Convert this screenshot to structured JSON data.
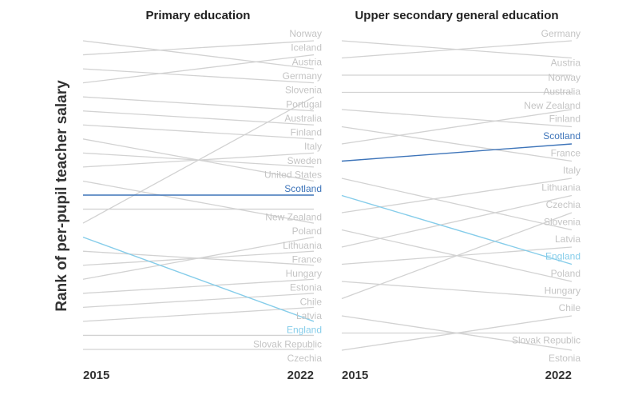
{
  "colors": {
    "other": "#d2d2d2",
    "other_label": "#c4c4c4",
    "Scotland": "#3d74b9",
    "England": "#86cdea"
  },
  "chart_data": [
    {
      "type": "slope",
      "title": "Primary education",
      "ylabel": "Rank of per-pupil teacher salary",
      "x": [
        "2015",
        "2022"
      ],
      "countries": [
        {
          "name": "Norway",
          "rank_2015": 2,
          "rank_2022": 1
        },
        {
          "name": "Iceland",
          "rank_2015": 4,
          "rank_2022": 2
        },
        {
          "name": "Austria",
          "rank_2015": 1,
          "rank_2022": 3
        },
        {
          "name": "Germany",
          "rank_2015": 3,
          "rank_2022": 4
        },
        {
          "name": "Slovenia",
          "rank_2015": 14,
          "rank_2022": 5
        },
        {
          "name": "Portugal",
          "rank_2015": 5,
          "rank_2022": 6
        },
        {
          "name": "Australia",
          "rank_2015": 6,
          "rank_2022": 7
        },
        {
          "name": "Finland",
          "rank_2015": 7,
          "rank_2022": 8
        },
        {
          "name": "Italy",
          "rank_2015": 10,
          "rank_2022": 9
        },
        {
          "name": "Sweden",
          "rank_2015": 9,
          "rank_2022": 10
        },
        {
          "name": "United States",
          "rank_2015": 8,
          "rank_2022": 11
        },
        {
          "name": "Scotland",
          "rank_2015": 12,
          "rank_2022": 12
        },
        {
          "name": "New Zealand",
          "rank_2015": 13,
          "rank_2022": 13
        },
        {
          "name": "Poland",
          "rank_2015": 11,
          "rank_2022": 14
        },
        {
          "name": "Lithuania",
          "rank_2015": 18,
          "rank_2022": 15
        },
        {
          "name": "France",
          "rank_2015": 17,
          "rank_2022": 16
        },
        {
          "name": "Hungary",
          "rank_2015": 16,
          "rank_2022": 17
        },
        {
          "name": "Estonia",
          "rank_2015": 19,
          "rank_2022": 18
        },
        {
          "name": "Chile",
          "rank_2015": 20,
          "rank_2022": 19
        },
        {
          "name": "Latvia",
          "rank_2015": 21,
          "rank_2022": 20
        },
        {
          "name": "England",
          "rank_2015": 15,
          "rank_2022": 21
        },
        {
          "name": "Slovak Republic",
          "rank_2015": 22,
          "rank_2022": 22
        },
        {
          "name": "Czechia",
          "rank_2015": 23,
          "rank_2022": 23
        }
      ]
    },
    {
      "type": "slope",
      "title": "Upper secondary general education",
      "x": [
        "2015",
        "2022"
      ],
      "countries": [
        {
          "name": "Germany",
          "rank_2015": 2,
          "rank_2022": 1
        },
        {
          "name": "Austria",
          "rank_2015": 1,
          "rank_2022": 2
        },
        {
          "name": "Norway",
          "rank_2015": 3,
          "rank_2022": 3
        },
        {
          "name": "Australia",
          "rank_2015": 4,
          "rank_2022": 4
        },
        {
          "name": "New Zealand",
          "rank_2015": 7,
          "rank_2022": 5
        },
        {
          "name": "Finland",
          "rank_2015": 5,
          "rank_2022": 6
        },
        {
          "name": "Scotland",
          "rank_2015": 8,
          "rank_2022": 7
        },
        {
          "name": "France",
          "rank_2015": 6,
          "rank_2022": 8
        },
        {
          "name": "Italy",
          "rank_2015": 11,
          "rank_2022": 9
        },
        {
          "name": "Lithuania",
          "rank_2015": 13,
          "rank_2022": 10
        },
        {
          "name": "Czechia",
          "rank_2015": 16,
          "rank_2022": 11
        },
        {
          "name": "Slovenia",
          "rank_2015": 9,
          "rank_2022": 12
        },
        {
          "name": "Latvia",
          "rank_2015": 14,
          "rank_2022": 13
        },
        {
          "name": "England",
          "rank_2015": 10,
          "rank_2022": 14
        },
        {
          "name": "Poland",
          "rank_2015": 12,
          "rank_2022": 15
        },
        {
          "name": "Hungary",
          "rank_2015": 15,
          "rank_2022": 16
        },
        {
          "name": "Chile",
          "rank_2015": 19,
          "rank_2022": 17
        },
        {
          "name": "Slovak Republic",
          "rank_2015": 18,
          "rank_2022": 18
        },
        {
          "name": "Estonia",
          "rank_2015": 17,
          "rank_2022": 19
        }
      ]
    }
  ]
}
